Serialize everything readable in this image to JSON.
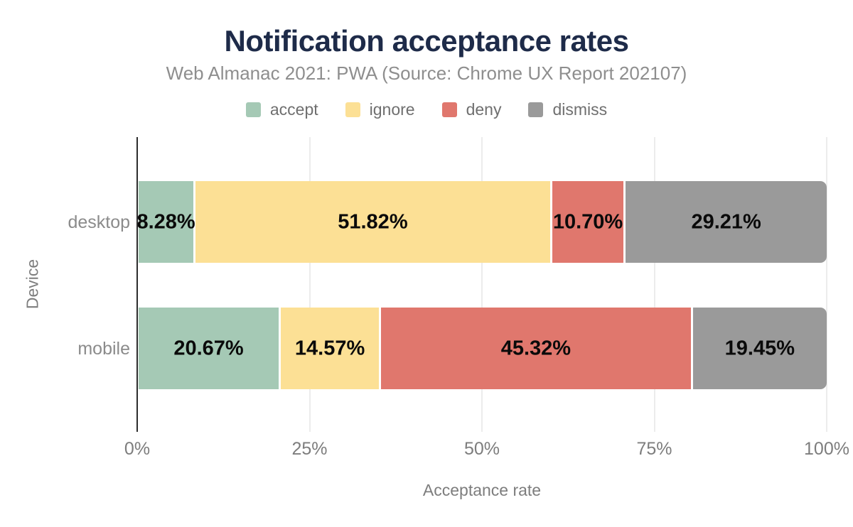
{
  "title": "Notification acceptance rates",
  "subtitle": "Web Almanac 2021: PWA (Source: Chrome UX Report 202107)",
  "legend": [
    {
      "label": "accept",
      "color": "#a5c9b5"
    },
    {
      "label": "ignore",
      "color": "#fce095"
    },
    {
      "label": "deny",
      "color": "#e0776d"
    },
    {
      "label": "dismiss",
      "color": "#9a9a9a"
    }
  ],
  "chart_data": {
    "type": "bar",
    "orientation": "horizontal",
    "stacked": true,
    "title": "Notification acceptance rates",
    "subtitle": "Web Almanac 2021: PWA (Source: Chrome UX Report 202107)",
    "categories": [
      "desktop",
      "mobile"
    ],
    "series": [
      {
        "name": "accept",
        "color": "#a5c9b5",
        "values": [
          8.28,
          20.67
        ],
        "labels": [
          "8.28%",
          "20.67%"
        ]
      },
      {
        "name": "ignore",
        "color": "#fce095",
        "values": [
          51.82,
          14.57
        ],
        "labels": [
          "51.82%",
          "14.57%"
        ]
      },
      {
        "name": "deny",
        "color": "#e0776d",
        "values": [
          10.7,
          45.32
        ],
        "labels": [
          "10.70%",
          "45.32%"
        ]
      },
      {
        "name": "dismiss",
        "color": "#9a9a9a",
        "values": [
          29.21,
          19.45
        ],
        "labels": [
          "29.21%",
          "19.45%"
        ]
      }
    ],
    "xlabel": "Acceptance rate",
    "ylabel": "Device",
    "xlim": [
      0,
      100
    ],
    "x_tick_values": [
      0,
      25,
      50,
      75,
      100
    ],
    "x_tick_labels": [
      "0%",
      "25%",
      "50%",
      "75%",
      "100%"
    ],
    "grid": true,
    "legend_position": "top"
  },
  "colors": {
    "title_text": "#1e2b49",
    "subtitle_text": "#8e8e8e",
    "axis_text": "#7d7d7d",
    "category_text": "#8b8b8b",
    "value_label_text": "#0a0a0a",
    "grid_line": "#ececec",
    "axis_line": "#2d2d2d",
    "background": "#ffffff"
  }
}
